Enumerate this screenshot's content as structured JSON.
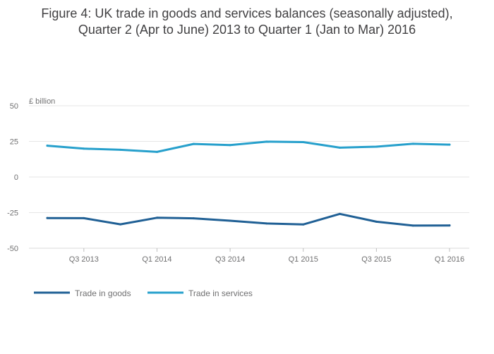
{
  "chart_data": {
    "type": "line",
    "title_line1": "Figure 4: UK trade in goods and services balances (seasonally adjusted),",
    "title_line2": "Quarter 2 (Apr to June) 2013 to Quarter 1 (Jan to Mar) 2016",
    "ylabel": "£ billion",
    "ylim": [
      -50,
      50
    ],
    "yticks": [
      "50",
      "25",
      "0",
      "-25",
      "-50"
    ],
    "ytick_values": [
      50,
      25,
      0,
      -25,
      -50
    ],
    "x": [
      "Q2 2013",
      "Q3 2013",
      "Q4 2013",
      "Q1 2014",
      "Q2 2014",
      "Q3 2014",
      "Q4 2014",
      "Q1 2015",
      "Q2 2015",
      "Q3 2015",
      "Q4 2015",
      "Q1 2016"
    ],
    "xtick_labels": [
      {
        "index": 1,
        "label": "Q3 2013"
      },
      {
        "index": 3,
        "label": "Q1 2014"
      },
      {
        "index": 5,
        "label": "Q3 2014"
      },
      {
        "index": 7,
        "label": "Q1 2015"
      },
      {
        "index": 9,
        "label": "Q3 2015"
      },
      {
        "index": 11,
        "label": "Q1 2016"
      }
    ],
    "grid": true,
    "legend_position": "bottom-left",
    "series": [
      {
        "name": "Trade in goods",
        "color": "#206095",
        "values": [
          -28.8,
          -28.9,
          -33.2,
          -28.6,
          -29.0,
          -30.7,
          -32.6,
          -33.3,
          -25.9,
          -31.4,
          -34.1,
          -34.0
        ]
      },
      {
        "name": "Trade in services",
        "color": "#27A0CC",
        "values": [
          22.0,
          19.9,
          19.1,
          17.6,
          23.2,
          22.4,
          24.8,
          24.5,
          20.6,
          21.3,
          23.3,
          22.7
        ]
      }
    ]
  }
}
